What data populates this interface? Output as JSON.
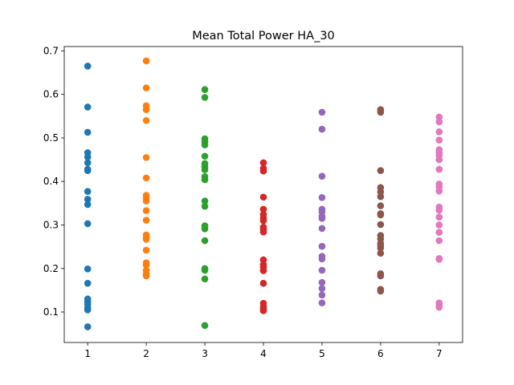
{
  "chart_data": {
    "type": "scatter",
    "title": "Mean Total Power HA_30",
    "xlabel": "",
    "ylabel": "",
    "xlim": [
      0.6,
      7.4
    ],
    "ylim": [
      0.03,
      0.71
    ],
    "x_ticks": [
      1,
      2,
      3,
      4,
      5,
      6,
      7
    ],
    "y_ticks": [
      0.1,
      0.2,
      0.3,
      0.4,
      0.5,
      0.6,
      0.7
    ],
    "grid": false,
    "legend": "none",
    "series": [
      {
        "x": 1,
        "color": "#1f77b4",
        "values": [
          0.665,
          0.571,
          0.513,
          0.466,
          0.456,
          0.443,
          0.428,
          0.425,
          0.377,
          0.359,
          0.347,
          0.303,
          0.199,
          0.166,
          0.13,
          0.124,
          0.118,
          0.11,
          0.105,
          0.066
        ]
      },
      {
        "x": 2,
        "color": "#ff7f0e",
        "values": [
          0.677,
          0.615,
          0.574,
          0.565,
          0.54,
          0.455,
          0.408,
          0.368,
          0.361,
          0.355,
          0.333,
          0.311,
          0.277,
          0.271,
          0.267,
          0.242,
          0.213,
          0.208,
          0.196,
          0.188,
          0.183
        ]
      },
      {
        "x": 3,
        "color": "#2ca02c",
        "values": [
          0.611,
          0.593,
          0.498,
          0.491,
          0.484,
          0.458,
          0.441,
          0.434,
          0.427,
          0.411,
          0.404,
          0.355,
          0.343,
          0.298,
          0.291,
          0.264,
          0.2,
          0.196,
          0.176,
          0.069
        ]
      },
      {
        "x": 4,
        "color": "#d62728",
        "values": [
          0.443,
          0.43,
          0.424,
          0.364,
          0.336,
          0.324,
          0.316,
          0.31,
          0.295,
          0.29,
          0.284,
          0.22,
          0.209,
          0.203,
          0.195,
          0.166,
          0.12,
          0.112,
          0.107,
          0.103
        ]
      },
      {
        "x": 5,
        "color": "#9467bd",
        "values": [
          0.559,
          0.52,
          0.412,
          0.363,
          0.336,
          0.33,
          0.32,
          0.315,
          0.292,
          0.251,
          0.228,
          0.222,
          0.196,
          0.168,
          0.154,
          0.139,
          0.121
        ]
      },
      {
        "x": 6,
        "color": "#8c564b",
        "values": [
          0.565,
          0.559,
          0.425,
          0.386,
          0.376,
          0.365,
          0.344,
          0.326,
          0.323,
          0.301,
          0.276,
          0.268,
          0.258,
          0.253,
          0.247,
          0.235,
          0.188,
          0.183,
          0.152,
          0.148
        ]
      },
      {
        "x": 7,
        "color": "#e377c2",
        "values": [
          0.548,
          0.537,
          0.514,
          0.495,
          0.473,
          0.466,
          0.46,
          0.45,
          0.428,
          0.394,
          0.387,
          0.378,
          0.341,
          0.334,
          0.318,
          0.3,
          0.283,
          0.264,
          0.223,
          0.221,
          0.121,
          0.116,
          0.111
        ]
      }
    ]
  }
}
